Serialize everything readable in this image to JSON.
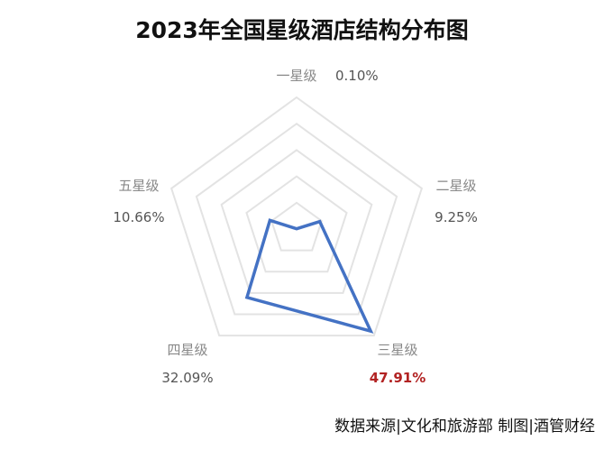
{
  "chart_data": {
    "type": "radar",
    "title": "2023年全国星级酒店结构分布图",
    "categories": [
      "一星级",
      "二星级",
      "三星级",
      "四星级",
      "五星级"
    ],
    "values": [
      0.1,
      9.25,
      47.91,
      32.09,
      10.66
    ],
    "value_labels": [
      "0.10%",
      "9.25%",
      "47.91%",
      "32.09%",
      "10.66%"
    ],
    "highlight_category": "三星级",
    "rmax": 50,
    "grid_levels": 5,
    "grid": true,
    "legend": "none",
    "series_color": "#4472c4",
    "grid_color": "#e3e3e3",
    "highlight_color": "#b22222"
  },
  "footer": {
    "source": "数据来源|文化和旅游部    制图|酒管财经"
  }
}
